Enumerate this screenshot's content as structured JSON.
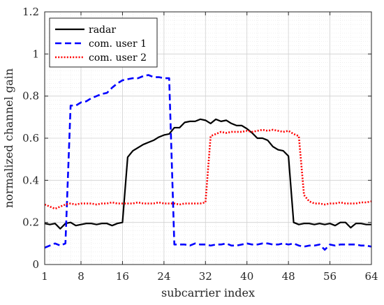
{
  "chart_data": {
    "type": "line",
    "title": "",
    "xlabel": "subcarrier index",
    "ylabel": "normalized channel gain",
    "xlim": [
      1,
      64
    ],
    "ylim": [
      0,
      1.2
    ],
    "xticks": [
      1,
      8,
      16,
      24,
      32,
      40,
      48,
      56,
      64
    ],
    "yticks": [
      0,
      0.2,
      0.4,
      0.6,
      0.8,
      1.0,
      1.2
    ],
    "ytick_labels": [
      "0",
      "0.2",
      "0.4",
      "0.6",
      "0.8",
      "1",
      "1.2"
    ],
    "grid": true,
    "minor_grid": true,
    "legend_position": "top-left",
    "x": [
      1,
      2,
      3,
      4,
      5,
      6,
      7,
      8,
      9,
      10,
      11,
      12,
      13,
      14,
      15,
      16,
      17,
      18,
      19,
      20,
      21,
      22,
      23,
      24,
      25,
      26,
      27,
      28,
      29,
      30,
      31,
      32,
      33,
      34,
      35,
      36,
      37,
      38,
      39,
      40,
      41,
      42,
      43,
      44,
      45,
      46,
      47,
      48,
      49,
      50,
      51,
      52,
      53,
      54,
      55,
      56,
      57,
      58,
      59,
      60,
      61,
      62,
      63,
      64
    ],
    "series": [
      {
        "name": "radar",
        "color": "#000000",
        "style": "solid",
        "values": [
          0.195,
          0.19,
          0.195,
          0.17,
          0.195,
          0.2,
          0.185,
          0.19,
          0.195,
          0.195,
          0.19,
          0.195,
          0.195,
          0.185,
          0.195,
          0.2,
          0.51,
          0.54,
          0.555,
          0.57,
          0.58,
          0.59,
          0.605,
          0.615,
          0.62,
          0.65,
          0.65,
          0.675,
          0.68,
          0.68,
          0.69,
          0.685,
          0.67,
          0.69,
          0.68,
          0.685,
          0.67,
          0.66,
          0.66,
          0.645,
          0.625,
          0.6,
          0.6,
          0.59,
          0.56,
          0.545,
          0.54,
          0.515,
          0.2,
          0.19,
          0.195,
          0.195,
          0.19,
          0.195,
          0.19,
          0.195,
          0.185,
          0.2,
          0.2,
          0.175,
          0.195,
          0.195,
          0.19,
          0.19
        ]
      },
      {
        "name": "com. user 1",
        "color": "#0000ff",
        "style": "dashed",
        "values": [
          0.08,
          0.09,
          0.1,
          0.09,
          0.1,
          0.755,
          0.755,
          0.77,
          0.775,
          0.79,
          0.8,
          0.81,
          0.815,
          0.84,
          0.86,
          0.875,
          0.88,
          0.885,
          0.885,
          0.895,
          0.9,
          0.89,
          0.89,
          0.885,
          0.885,
          0.095,
          0.095,
          0.095,
          0.09,
          0.1,
          0.095,
          0.095,
          0.09,
          0.095,
          0.095,
          0.1,
          0.09,
          0.09,
          0.095,
          0.1,
          0.095,
          0.095,
          0.1,
          0.1,
          0.095,
          0.095,
          0.1,
          0.095,
          0.1,
          0.09,
          0.085,
          0.09,
          0.09,
          0.095,
          0.07,
          0.095,
          0.09,
          0.095,
          0.095,
          0.095,
          0.095,
          0.09,
          0.09,
          0.085
        ]
      },
      {
        "name": "com. user 2",
        "color": "#ff0000",
        "style": "dotted",
        "values": [
          0.285,
          0.275,
          0.265,
          0.275,
          0.285,
          0.29,
          0.285,
          0.29,
          0.29,
          0.29,
          0.285,
          0.29,
          0.29,
          0.295,
          0.29,
          0.29,
          0.29,
          0.29,
          0.295,
          0.29,
          0.29,
          0.29,
          0.295,
          0.29,
          0.29,
          0.29,
          0.285,
          0.29,
          0.29,
          0.29,
          0.29,
          0.295,
          0.61,
          0.62,
          0.63,
          0.625,
          0.63,
          0.63,
          0.63,
          0.635,
          0.63,
          0.635,
          0.64,
          0.635,
          0.64,
          0.635,
          0.63,
          0.635,
          0.62,
          0.61,
          0.33,
          0.3,
          0.29,
          0.29,
          0.285,
          0.29,
          0.29,
          0.295,
          0.29,
          0.29,
          0.29,
          0.295,
          0.295,
          0.3
        ]
      }
    ]
  }
}
